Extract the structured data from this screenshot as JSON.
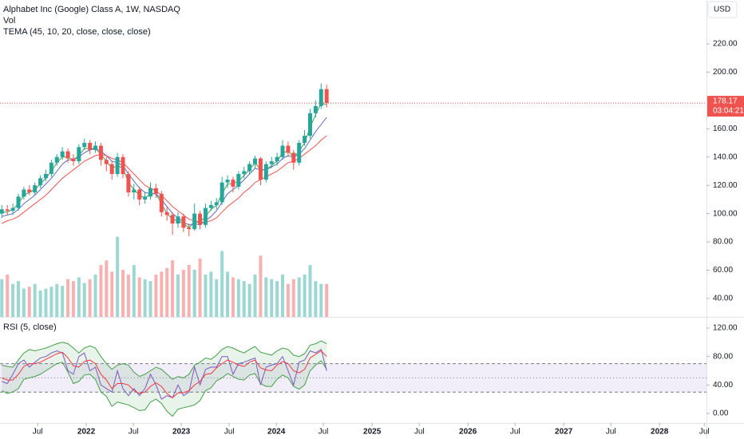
{
  "chart_data": [
    {
      "type": "candlestick",
      "title": "Alphabet Inc (Google) Class A, 1W, NASDAQ",
      "volume_label": "Vol",
      "indicator_label": "TEMA (45, 10, 20, close, close, close)",
      "currency": "USD",
      "countdown": "03:04:21",
      "up_color": "#26a69a",
      "down_color": "#ef5350",
      "x": [
        1,
        4,
        7,
        10,
        13,
        16,
        19,
        22,
        25,
        28,
        31,
        34,
        37,
        40,
        43,
        46,
        49,
        52,
        55,
        58,
        61,
        64,
        67,
        70,
        73,
        76,
        79,
        82,
        85,
        88,
        91,
        94,
        97,
        100,
        103,
        106,
        109,
        112,
        115,
        118,
        121,
        124,
        127,
        130,
        133,
        136,
        139,
        142,
        145,
        148,
        151,
        154,
        157,
        160,
        163,
        166,
        169,
        172,
        175,
        178
      ],
      "open": [
        100,
        103,
        102,
        104,
        112,
        117,
        115,
        120,
        125,
        128,
        136,
        140,
        144,
        139,
        137,
        147,
        150,
        145,
        148,
        138,
        135,
        128,
        140,
        128,
        115,
        117,
        110,
        112,
        118,
        114,
        101,
        99,
        93,
        98,
        90,
        89,
        100,
        92,
        104,
        106,
        108,
        122,
        124,
        119,
        128,
        130,
        135,
        139,
        124,
        135,
        137,
        140,
        148,
        143,
        136,
        150,
        155,
        171,
        176,
        188
      ],
      "high": [
        106,
        106,
        107,
        114,
        119,
        120,
        122,
        127,
        131,
        138,
        142,
        147,
        146,
        142,
        149,
        153,
        152,
        151,
        150,
        140,
        137,
        143,
        142,
        130,
        121,
        119,
        115,
        122,
        121,
        116,
        105,
        101,
        101,
        100,
        93,
        107,
        102,
        107,
        109,
        111,
        126,
        127,
        126,
        130,
        133,
        137,
        141,
        140,
        137,
        140,
        143,
        152,
        151,
        145,
        152,
        159,
        174,
        180,
        192,
        191
      ],
      "low": [
        97,
        99,
        99,
        102,
        110,
        113,
        113,
        118,
        123,
        126,
        134,
        138,
        136,
        134,
        135,
        145,
        142,
        143,
        134,
        130,
        124,
        126,
        125,
        112,
        110,
        106,
        107,
        110,
        111,
        98,
        95,
        85,
        90,
        87,
        84,
        88,
        89,
        90,
        102,
        103,
        106,
        118,
        115,
        117,
        125,
        128,
        132,
        120,
        122,
        132,
        134,
        138,
        140,
        131,
        134,
        148,
        153,
        168,
        174,
        175
      ],
      "close": [
        103,
        102,
        104,
        112,
        117,
        115,
        120,
        125,
        128,
        136,
        140,
        144,
        139,
        137,
        147,
        150,
        145,
        148,
        138,
        135,
        128,
        140,
        128,
        115,
        117,
        110,
        112,
        118,
        114,
        101,
        99,
        93,
        98,
        90,
        89,
        100,
        92,
        104,
        106,
        108,
        122,
        124,
        119,
        128,
        130,
        135,
        139,
        124,
        135,
        137,
        140,
        148,
        143,
        136,
        150,
        155,
        171,
        176,
        188,
        178.17
      ],
      "volume": [
        40,
        45,
        35,
        38,
        30,
        32,
        35,
        28,
        30,
        32,
        35,
        33,
        40,
        38,
        42,
        36,
        40,
        45,
        55,
        60,
        48,
        85,
        50,
        45,
        55,
        42,
        40,
        38,
        45,
        48,
        52,
        60,
        45,
        50,
        55,
        50,
        62,
        45,
        48,
        40,
        70,
        48,
        42,
        40,
        38,
        35,
        45,
        65,
        42,
        40,
        38,
        45,
        35,
        40,
        42,
        45,
        55,
        38,
        35,
        35
      ],
      "lines": [
        {
          "color": "#43a047",
          "values": [
            101,
            101,
            103,
            107,
            113,
            115,
            117,
            121,
            125,
            130,
            136,
            140,
            140,
            138,
            141,
            146,
            146,
            146,
            142,
            137,
            132,
            134,
            132,
            122,
            117,
            113,
            111,
            114,
            114,
            107,
            100,
            96,
            95,
            93,
            90,
            94,
            94,
            98,
            103,
            106,
            114,
            121,
            121,
            123,
            127,
            131,
            136,
            131,
            131,
            134,
            137,
            143,
            144,
            140,
            144,
            150,
            161,
            170,
            178,
            177
          ]
        },
        {
          "color": "#5c6bc0",
          "values": [
            98,
            99,
            100,
            103,
            107,
            110,
            113,
            117,
            121,
            125,
            130,
            135,
            138,
            138,
            140,
            143,
            145,
            146,
            144,
            141,
            137,
            136,
            134,
            128,
            123,
            118,
            115,
            114,
            114,
            110,
            105,
            100,
            97,
            94,
            92,
            93,
            92,
            95,
            98,
            102,
            108,
            114,
            117,
            120,
            124,
            128,
            132,
            131,
            131,
            133,
            135,
            139,
            141,
            140,
            142,
            146,
            152,
            158,
            163,
            168
          ]
        },
        {
          "color": "#ef5350",
          "values": [
            93,
            95,
            96,
            98,
            101,
            104,
            107,
            110,
            113,
            117,
            121,
            125,
            128,
            131,
            134,
            137,
            139,
            141,
            142,
            141,
            139,
            138,
            136,
            132,
            128,
            124,
            120,
            118,
            116,
            113,
            109,
            105,
            102,
            99,
            96,
            95,
            94,
            94,
            95,
            97,
            101,
            105,
            108,
            111,
            115,
            118,
            122,
            124,
            126,
            128,
            130,
            133,
            136,
            137,
            139,
            142,
            145,
            148,
            152,
            155
          ]
        }
      ],
      "xlim": [
        0,
        385
      ],
      "xticks": [
        {
          "value": 20.5,
          "label": "Jul"
        },
        {
          "value": 47,
          "label": "2022"
        },
        {
          "value": 72.7,
          "label": "Jul"
        },
        {
          "value": 98.8,
          "label": "2023"
        },
        {
          "value": 124.9,
          "label": "Jul"
        },
        {
          "value": 150.6,
          "label": "2024"
        },
        {
          "value": 176.2,
          "label": "Jul"
        },
        {
          "value": 202.8,
          "label": "2025"
        },
        {
          "value": 228.5,
          "label": "Jul"
        },
        {
          "value": 255,
          "label": "2026"
        },
        {
          "value": 280.7,
          "label": "Jul"
        },
        {
          "value": 307.2,
          "label": "2027"
        },
        {
          "value": 332.9,
          "label": "Jul"
        },
        {
          "value": 359.4,
          "label": "2028"
        },
        {
          "value": 383.8,
          "label": "Jul"
        }
      ],
      "ylim": [
        27,
        251
      ],
      "yticks": [
        {
          "value": 40,
          "label": "40.00"
        },
        {
          "value": 60,
          "label": "60.00"
        },
        {
          "value": 80,
          "label": "80.00"
        },
        {
          "value": 100,
          "label": "100.00"
        },
        {
          "value": 120,
          "label": "120.00"
        },
        {
          "value": 140,
          "label": "140.00"
        },
        {
          "value": 160,
          "label": "160.00"
        },
        {
          "value": 200,
          "label": "200.00"
        },
        {
          "value": 220,
          "label": "220.00"
        }
      ]
    },
    {
      "type": "line",
      "title": "RSI (5, close)",
      "color": "#7e57c2",
      "ma_color": "#f23645",
      "band_color": "#43a047",
      "values": [
        45,
        42,
        55,
        70,
        75,
        65,
        72,
        78,
        80,
        85,
        88,
        85,
        60,
        55,
        80,
        85,
        60,
        65,
        40,
        35,
        30,
        60,
        35,
        25,
        35,
        25,
        35,
        55,
        40,
        20,
        25,
        22,
        40,
        25,
        30,
        65,
        40,
        62,
        65,
        65,
        80,
        80,
        55,
        70,
        72,
        75,
        78,
        40,
        65,
        68,
        70,
        80,
        60,
        40,
        72,
        75,
        88,
        85,
        90,
        60
      ],
      "ma": [
        50,
        47,
        47,
        55,
        66,
        70,
        70,
        72,
        76,
        80,
        84,
        86,
        78,
        67,
        65,
        73,
        75,
        70,
        55,
        47,
        35,
        42,
        42,
        40,
        32,
        28,
        30,
        38,
        43,
        38,
        28,
        22,
        29,
        29,
        32,
        40,
        45,
        55,
        56,
        64,
        70,
        75,
        72,
        68,
        66,
        72,
        75,
        64,
        61,
        60,
        68,
        73,
        70,
        60,
        57,
        62,
        78,
        83,
        88,
        80
      ],
      "upper": [
        68,
        66,
        65,
        75,
        85,
        90,
        88,
        90,
        92,
        95,
        98,
        100,
        98,
        92,
        85,
        92,
        95,
        92,
        80,
        70,
        62,
        68,
        70,
        68,
        58,
        52,
        55,
        60,
        65,
        62,
        55,
        48,
        52,
        50,
        55,
        68,
        72,
        78,
        76,
        82,
        90,
        94,
        92,
        88,
        85,
        90,
        94,
        86,
        84,
        82,
        88,
        92,
        90,
        82,
        80,
        84,
        96,
        98,
        102,
        98
      ],
      "lower": [
        32,
        28,
        30,
        35,
        48,
        50,
        52,
        55,
        60,
        65,
        70,
        72,
        58,
        42,
        45,
        54,
        55,
        48,
        30,
        24,
        10,
        16,
        14,
        12,
        8,
        4,
        5,
        16,
        20,
        14,
        3,
        -4,
        6,
        8,
        10,
        12,
        18,
        32,
        36,
        46,
        50,
        56,
        52,
        48,
        47,
        54,
        56,
        42,
        38,
        38,
        48,
        54,
        50,
        38,
        34,
        40,
        60,
        68,
        74,
        62
      ],
      "levels": [
        70,
        50,
        30
      ],
      "ylim": [
        -13.5,
        134.6
      ],
      "yticks": [
        {
          "value": 0,
          "label": "0.00"
        },
        {
          "value": 40,
          "label": "40.00"
        },
        {
          "value": 80,
          "label": "80.00"
        },
        {
          "value": 120,
          "label": "120.00"
        }
      ]
    }
  ]
}
